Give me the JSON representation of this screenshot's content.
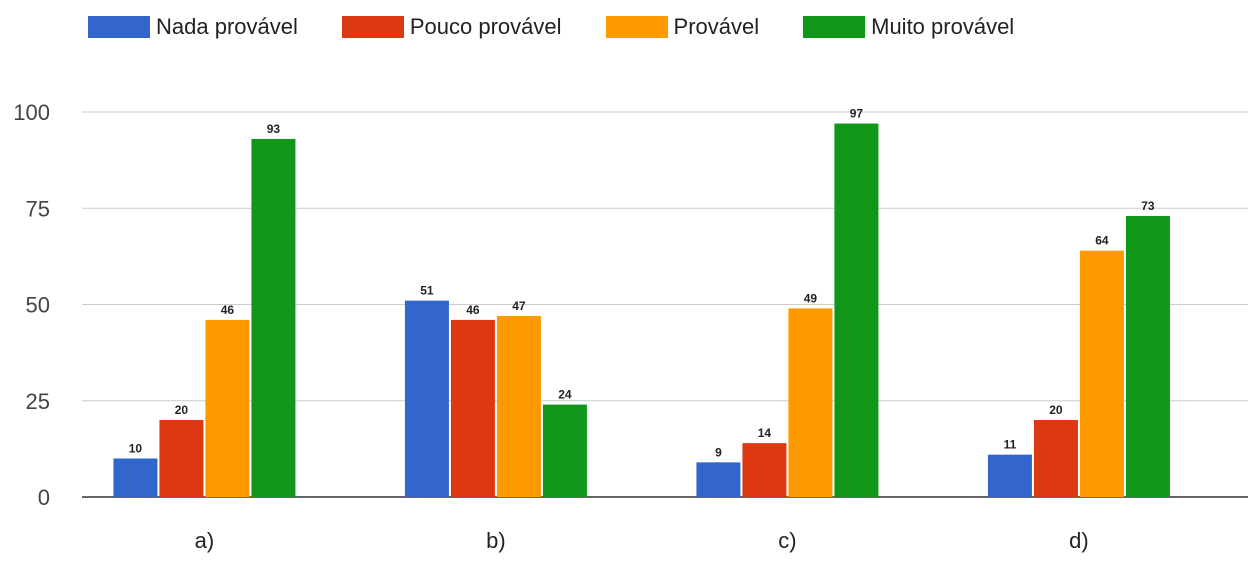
{
  "chart_data": {
    "type": "bar",
    "categories": [
      "a)",
      "b)",
      "c)",
      "d)"
    ],
    "series": [
      {
        "name": "Nada provável",
        "color": "#3366cc",
        "values": [
          10,
          51,
          9,
          11
        ]
      },
      {
        "name": "Pouco provável",
        "color": "#dc3912",
        "values": [
          20,
          46,
          14,
          20
        ]
      },
      {
        "name": "Provável",
        "color": "#ff9900",
        "values": [
          46,
          47,
          49,
          64
        ]
      },
      {
        "name": "Muito provável",
        "color": "#109618",
        "values": [
          93,
          24,
          97,
          73
        ]
      }
    ],
    "ylim": [
      0,
      100
    ],
    "yticks": [
      0,
      25,
      50,
      75,
      100
    ],
    "grid": true,
    "legend_position": "top"
  }
}
